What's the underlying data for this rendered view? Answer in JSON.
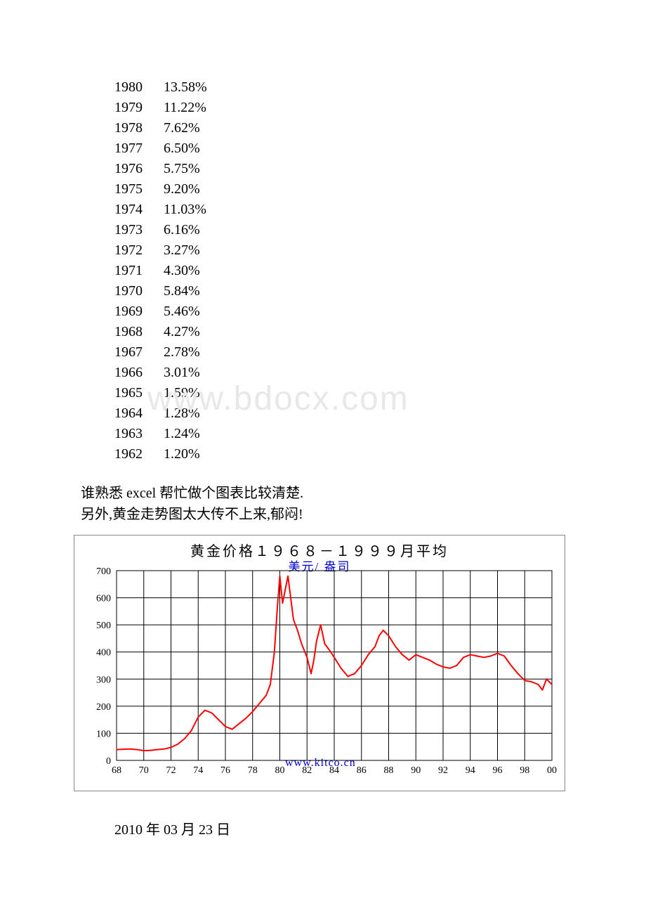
{
  "table": {
    "rows": [
      {
        "year": "1980",
        "value": "13.58%"
      },
      {
        "year": "1979",
        "value": "11.22%"
      },
      {
        "year": "1978",
        "value": "7.62%"
      },
      {
        "year": "1977",
        "value": "6.50%"
      },
      {
        "year": "1976",
        "value": "5.75%"
      },
      {
        "year": "1975",
        "value": "9.20%"
      },
      {
        "year": "1974",
        "value": "11.03%"
      },
      {
        "year": "1973",
        "value": "6.16%"
      },
      {
        "year": "1972",
        "value": "3.27%"
      },
      {
        "year": "1971",
        "value": "4.30%"
      },
      {
        "year": "1970",
        "value": "5.84%"
      },
      {
        "year": "1969",
        "value": "5.46%"
      },
      {
        "year": "1968",
        "value": "4.27%"
      },
      {
        "year": "1967",
        "value": "2.78%"
      },
      {
        "year": "1966",
        "value": "3.01%"
      },
      {
        "year": "1965",
        "value": "1.59%"
      },
      {
        "year": "1964",
        "value": "1.28%"
      },
      {
        "year": "1963",
        "value": "1.24%"
      },
      {
        "year": "1962",
        "value": "1.20%"
      }
    ]
  },
  "text": {
    "line1": "谁熟悉 excel 帮忙做个图表比较清楚.",
    "line2": "另外,黄金走势图太大传不上来,郁闷!"
  },
  "watermark": "www.bdocx.com",
  "chart": {
    "type": "line",
    "title": "黄金价格１９６８－１９９９月平均",
    "subtitle": "美元/ 盎司",
    "credit": "www.kitco.cn",
    "x_labels": [
      "68",
      "70",
      "72",
      "74",
      "76",
      "78",
      "80",
      "82",
      "84",
      "86",
      "88",
      "90",
      "92",
      "94",
      "96",
      "98",
      "00"
    ],
    "y_labels": [
      "0",
      "100",
      "200",
      "300",
      "400",
      "500",
      "600",
      "700"
    ],
    "ylim": [
      0,
      700
    ],
    "xlim": [
      68,
      100
    ],
    "background_color": "#ffffff",
    "grid_color": "#000000",
    "line_color": "#ff0000",
    "line_width": 2,
    "axis_fontsize": 14,
    "title_fontsize": 20,
    "data": [
      {
        "x": 68.0,
        "y": 40
      },
      {
        "x": 68.5,
        "y": 41
      },
      {
        "x": 69.0,
        "y": 42
      },
      {
        "x": 69.5,
        "y": 40
      },
      {
        "x": 70.0,
        "y": 36
      },
      {
        "x": 70.5,
        "y": 37
      },
      {
        "x": 71.0,
        "y": 40
      },
      {
        "x": 71.5,
        "y": 42
      },
      {
        "x": 72.0,
        "y": 48
      },
      {
        "x": 72.5,
        "y": 60
      },
      {
        "x": 73.0,
        "y": 80
      },
      {
        "x": 73.5,
        "y": 110
      },
      {
        "x": 74.0,
        "y": 160
      },
      {
        "x": 74.5,
        "y": 185
      },
      {
        "x": 75.0,
        "y": 175
      },
      {
        "x": 75.5,
        "y": 150
      },
      {
        "x": 76.0,
        "y": 125
      },
      {
        "x": 76.5,
        "y": 115
      },
      {
        "x": 77.0,
        "y": 135
      },
      {
        "x": 77.5,
        "y": 155
      },
      {
        "x": 78.0,
        "y": 180
      },
      {
        "x": 78.5,
        "y": 210
      },
      {
        "x": 79.0,
        "y": 240
      },
      {
        "x": 79.3,
        "y": 280
      },
      {
        "x": 79.6,
        "y": 400
      },
      {
        "x": 79.8,
        "y": 550
      },
      {
        "x": 80.0,
        "y": 680
      },
      {
        "x": 80.2,
        "y": 580
      },
      {
        "x": 80.4,
        "y": 630
      },
      {
        "x": 80.6,
        "y": 680
      },
      {
        "x": 80.8,
        "y": 600
      },
      {
        "x": 81.0,
        "y": 520
      },
      {
        "x": 81.3,
        "y": 480
      },
      {
        "x": 81.6,
        "y": 430
      },
      {
        "x": 82.0,
        "y": 380
      },
      {
        "x": 82.3,
        "y": 320
      },
      {
        "x": 82.5,
        "y": 370
      },
      {
        "x": 82.7,
        "y": 440
      },
      {
        "x": 83.0,
        "y": 500
      },
      {
        "x": 83.3,
        "y": 430
      },
      {
        "x": 83.6,
        "y": 410
      },
      {
        "x": 84.0,
        "y": 380
      },
      {
        "x": 84.5,
        "y": 340
      },
      {
        "x": 85.0,
        "y": 310
      },
      {
        "x": 85.5,
        "y": 320
      },
      {
        "x": 86.0,
        "y": 350
      },
      {
        "x": 86.5,
        "y": 390
      },
      {
        "x": 87.0,
        "y": 420
      },
      {
        "x": 87.3,
        "y": 460
      },
      {
        "x": 87.6,
        "y": 480
      },
      {
        "x": 88.0,
        "y": 460
      },
      {
        "x": 88.5,
        "y": 420
      },
      {
        "x": 89.0,
        "y": 390
      },
      {
        "x": 89.5,
        "y": 370
      },
      {
        "x": 90.0,
        "y": 390
      },
      {
        "x": 90.5,
        "y": 380
      },
      {
        "x": 91.0,
        "y": 370
      },
      {
        "x": 91.5,
        "y": 355
      },
      {
        "x": 92.0,
        "y": 345
      },
      {
        "x": 92.5,
        "y": 340
      },
      {
        "x": 93.0,
        "y": 350
      },
      {
        "x": 93.5,
        "y": 380
      },
      {
        "x": 94.0,
        "y": 390
      },
      {
        "x": 94.5,
        "y": 385
      },
      {
        "x": 95.0,
        "y": 380
      },
      {
        "x": 95.5,
        "y": 385
      },
      {
        "x": 96.0,
        "y": 395
      },
      {
        "x": 96.5,
        "y": 385
      },
      {
        "x": 97.0,
        "y": 350
      },
      {
        "x": 97.5,
        "y": 320
      },
      {
        "x": 98.0,
        "y": 295
      },
      {
        "x": 98.5,
        "y": 290
      },
      {
        "x": 99.0,
        "y": 280
      },
      {
        "x": 99.3,
        "y": 260
      },
      {
        "x": 99.6,
        "y": 300
      },
      {
        "x": 100.0,
        "y": 280
      }
    ]
  },
  "date": "2010 年 03 月 23 日"
}
